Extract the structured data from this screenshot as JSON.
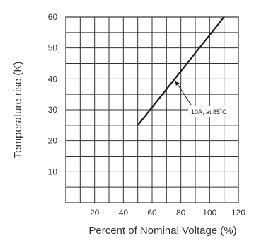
{
  "chart_data": {
    "type": "line",
    "xlabel": "Percent of Nominal Voltage (%)",
    "ylabel": "Temperature rise (K)",
    "xlim": [
      0,
      120
    ],
    "ylim": [
      0,
      60
    ],
    "x_ticks": [
      20,
      40,
      60,
      80,
      100,
      120
    ],
    "y_ticks": [
      10,
      20,
      30,
      40,
      50,
      60
    ],
    "grid": true,
    "grid_step_x": 10,
    "grid_step_y": 5,
    "series": [
      {
        "x": [
          50,
          110
        ],
        "y": [
          25,
          60
        ]
      }
    ],
    "annotation": {
      "text": "10A, at 85˚C",
      "x": 75,
      "y": 39.5
    },
    "colors": {
      "line": "#1a1a1a",
      "grid": "#333333",
      "frame": "#333333",
      "text": "#333333"
    }
  }
}
